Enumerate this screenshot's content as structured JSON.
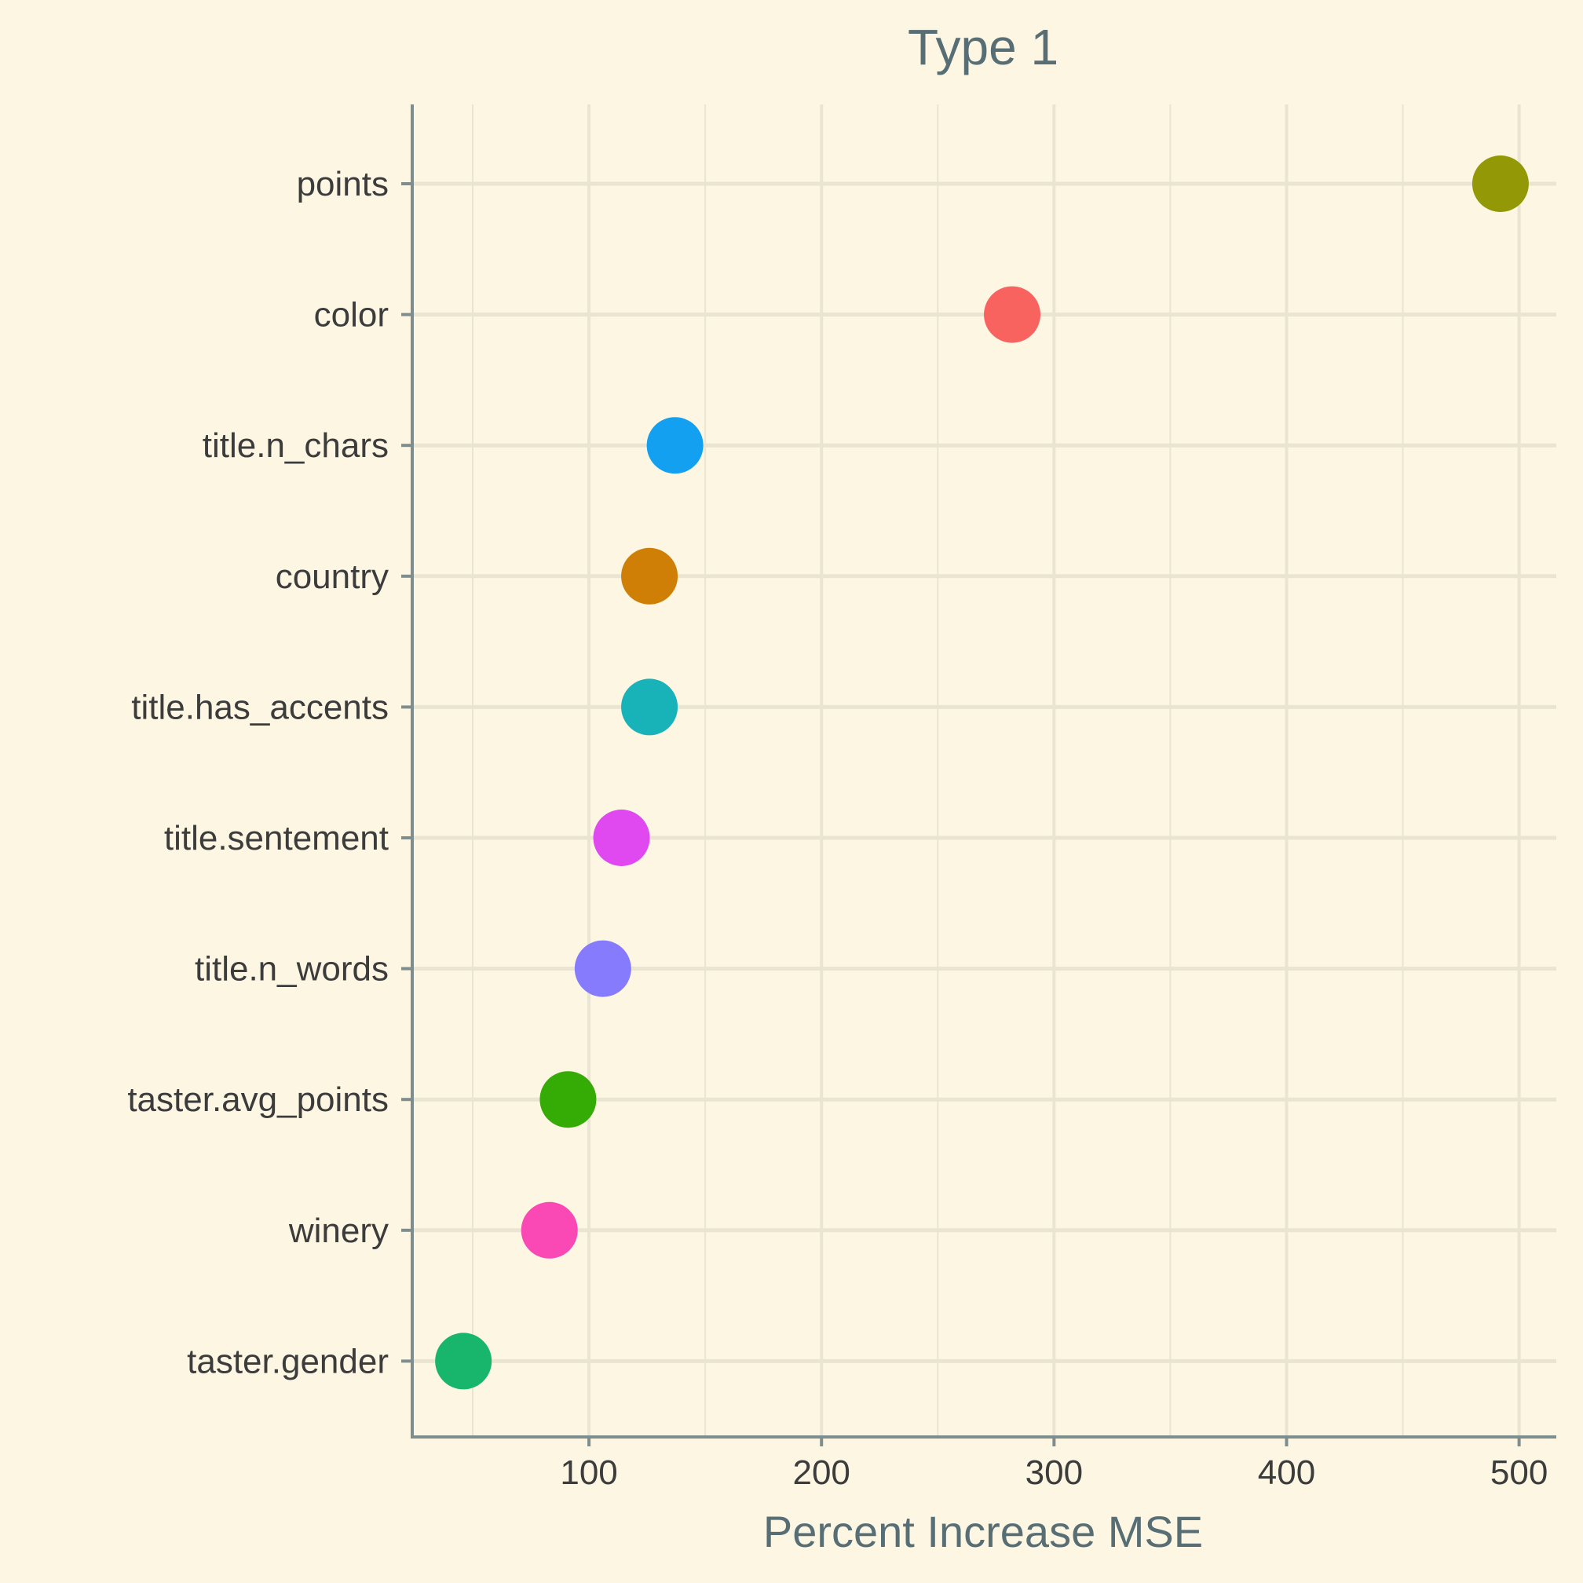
{
  "chart_data": {
    "type": "scatter",
    "title": "Type 1",
    "xlabel": "Percent Increase MSE",
    "ylabel": "",
    "xlim": [
      24,
      516
    ],
    "xticks": [
      100,
      200,
      300,
      400,
      500
    ],
    "grid": true,
    "legend": "none",
    "categories": [
      "points",
      "color",
      "title.n_chars",
      "country",
      "title.has_accents",
      "title.sentement",
      "title.n_words",
      "taster.avg_points",
      "winery",
      "taster.gender"
    ],
    "values": [
      492,
      282,
      137,
      126,
      126,
      114,
      106,
      91,
      83,
      46
    ],
    "point_colors": [
      "#939806",
      "#F8635F",
      "#13A0F0",
      "#CF7F05",
      "#17B3B9",
      "#DF49EF",
      "#857BFC",
      "#35AC05",
      "#FA48B4",
      "#17B66C"
    ]
  },
  "colors": {
    "background": "#FDF6E3",
    "grid": "#EAE4D2",
    "axis": "#7E8E8E",
    "title": "#586E75",
    "tick_text": "#3C3C3C"
  }
}
